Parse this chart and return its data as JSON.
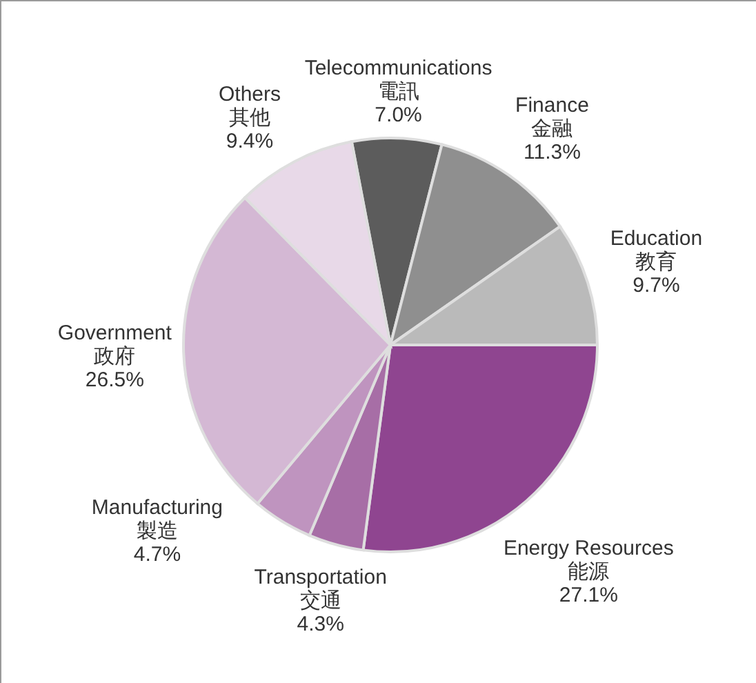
{
  "chart_data": {
    "type": "pie",
    "categories": [
      "Telecommunications\n電訊",
      "Finance\n金融",
      "Education\n教育",
      "Energy Resources\n能源",
      "Transportation\n交通",
      "Manufacturing\n製造",
      "Government\n政府",
      "Others\n其他"
    ],
    "values": [
      7.0,
      11.3,
      9.7,
      27.1,
      4.3,
      4.7,
      26.5,
      9.4
    ],
    "colors": [
      "#5c5c5c",
      "#8f8f8f",
      "#bababa",
      "#8f4590",
      "#a76ea6",
      "#bf94bf",
      "#d4b8d4",
      "#e8d9e8"
    ],
    "value_labels": [
      "7.0%",
      "11.3%",
      "9.7%",
      "27.1%",
      "4.3%",
      "4.7%",
      "26.5%",
      "9.4%"
    ]
  }
}
